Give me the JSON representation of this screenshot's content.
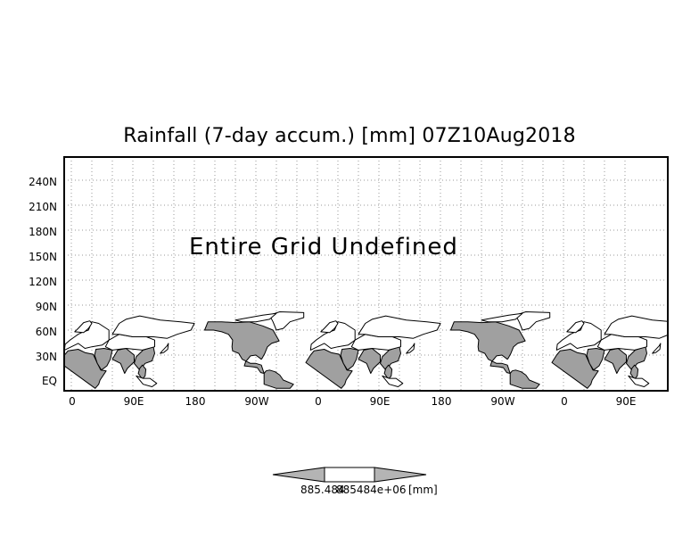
{
  "title": "Rainfall (7-day accum.) [mm] 07Z10Aug2018",
  "message": "Entire Grid Undefined",
  "y_ticks": [
    "240N",
    "210N",
    "180N",
    "150N",
    "120N",
    "90N",
    "60N",
    "30N",
    "EQ"
  ],
  "x_ticks": [
    "0",
    "90E",
    "180",
    "90W",
    "0",
    "90E",
    "180",
    "90W",
    "0",
    "90E"
  ],
  "colorbar": {
    "value_left": "885.484",
    "value_right": "885484e+06",
    "unit": "[mm]"
  },
  "colors": {
    "land_fill": "#a0a0a0",
    "colorbar_arrow": "#b4b4b4",
    "grid": "#9a9a9a"
  }
}
